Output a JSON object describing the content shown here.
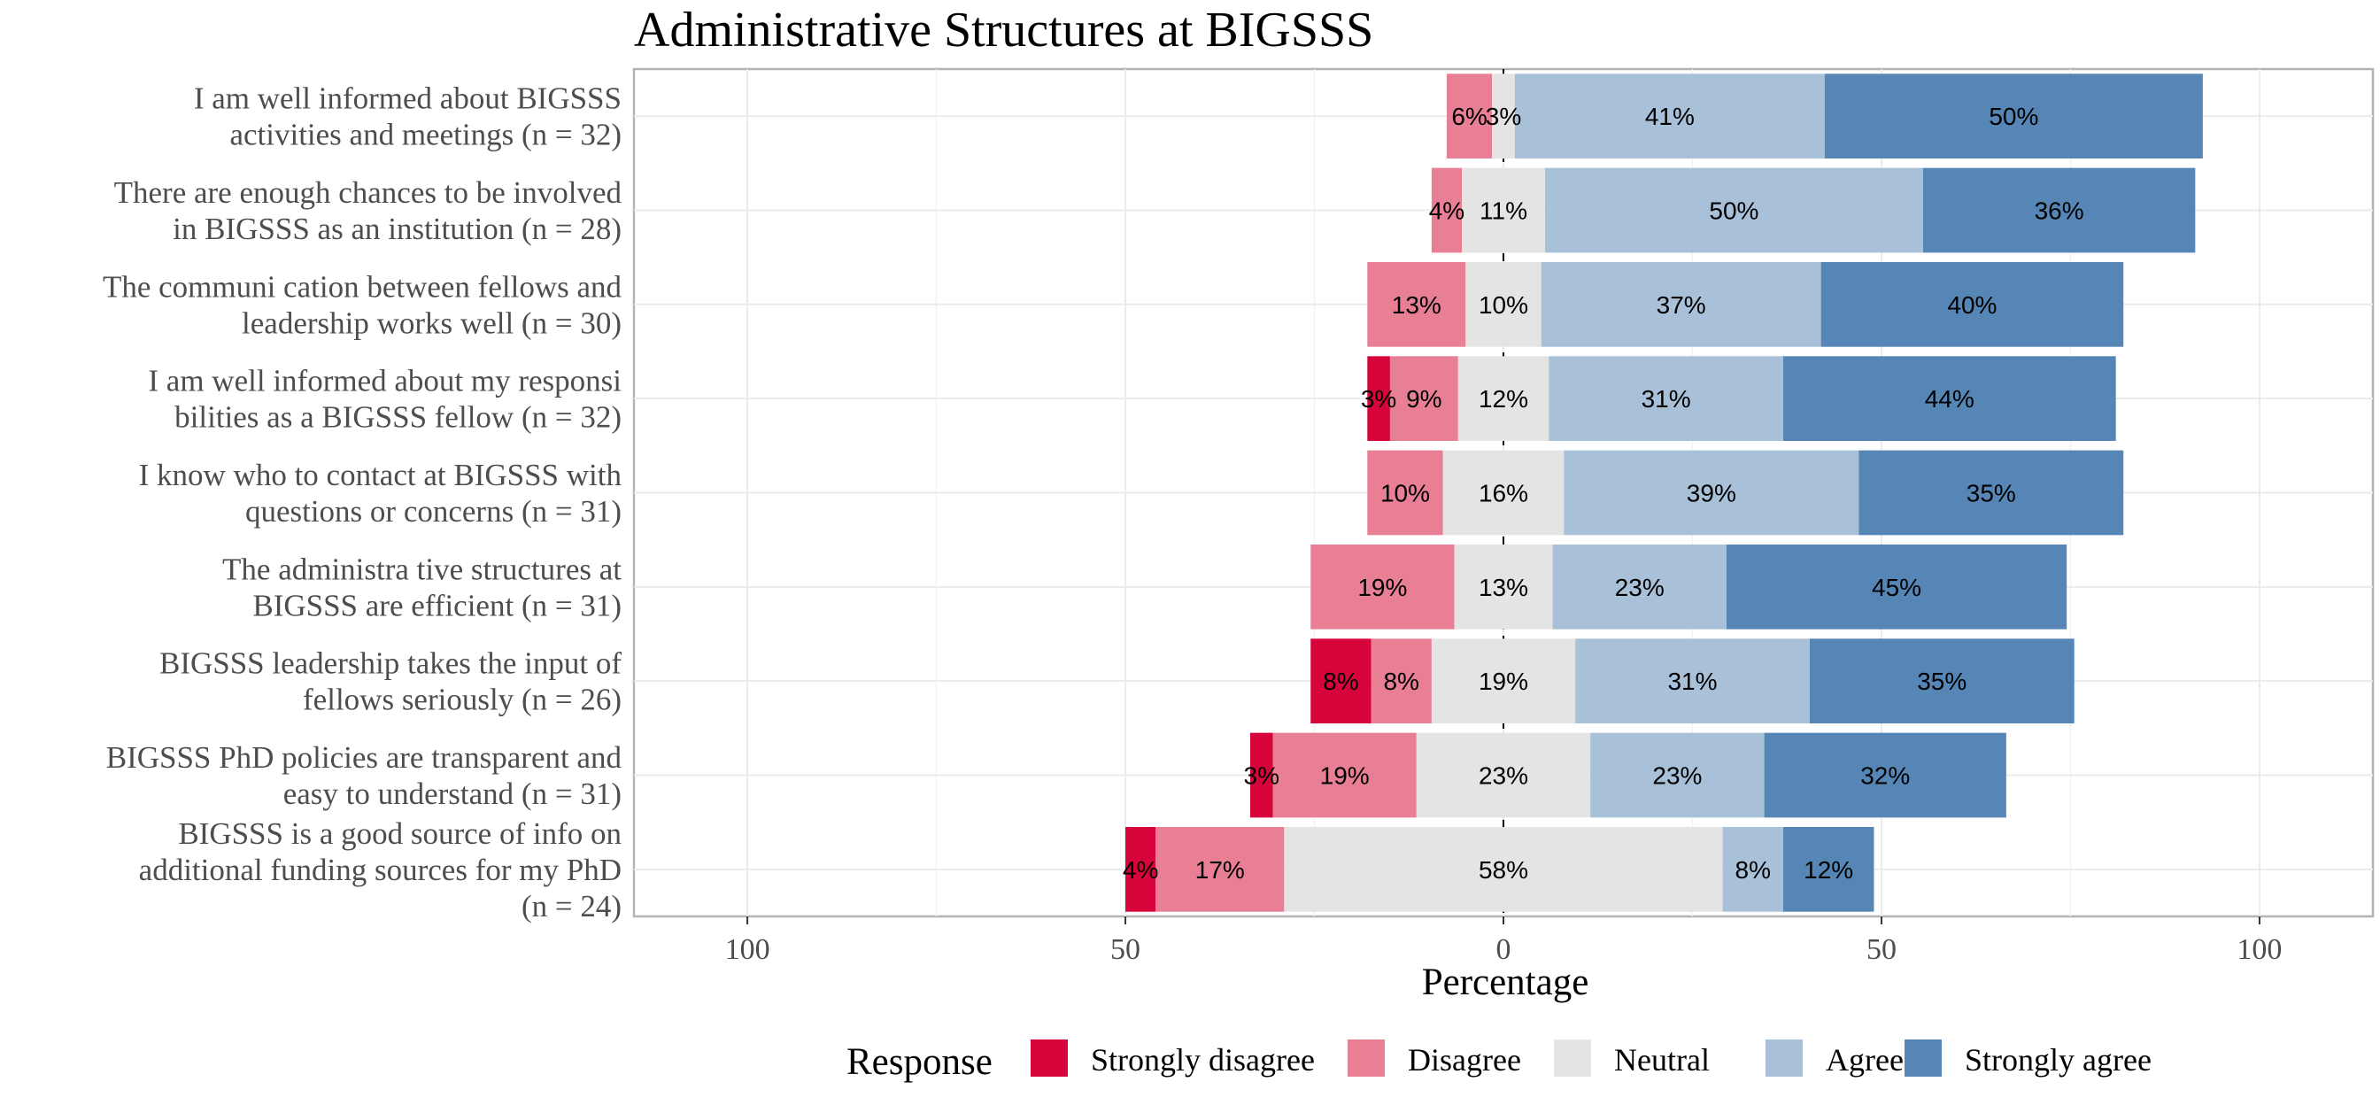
{
  "chart_data": {
    "type": "bar",
    "orientation": "horizontal-diverging-stacked",
    "title": "Administrative Structures at BIGSSS",
    "xlabel": "Percentage",
    "xlim": [
      -115,
      115
    ],
    "xticks": [
      -100,
      -50,
      0,
      50,
      100
    ],
    "xtick_labels": [
      "100",
      "50",
      "0",
      "50",
      "100"
    ],
    "legend_title": "Response",
    "legend_position": "bottom",
    "grid": true,
    "categories": [
      "Strongly disagree",
      "Disagree",
      "Neutral",
      "Agree",
      "Strongly agree"
    ],
    "colors": {
      "Strongly disagree": "#d7043b",
      "Disagree": "#e97f95",
      "Neutral": "#e4e4e4",
      "Agree": "#a9c0d9",
      "Strongly agree": "#5586b6"
    },
    "items": [
      {
        "label": [
          "I am well informed about BIGSSS",
          "activities and meetings (n = 32)"
        ],
        "values": [
          0,
          6,
          3,
          41,
          50
        ]
      },
      {
        "label": [
          "There are enough chances to be involved",
          "in BIGSSS as an institution (n = 28)"
        ],
        "values": [
          0,
          4,
          11,
          50,
          36
        ]
      },
      {
        "label": [
          "The communi cation between fellows and",
          "leadership works well (n = 30)"
        ],
        "values": [
          0,
          13,
          10,
          37,
          40
        ]
      },
      {
        "label": [
          "I am well informed about my responsi",
          "bilities as a BIGSSS fellow (n = 32)"
        ],
        "values": [
          3,
          9,
          12,
          31,
          44
        ]
      },
      {
        "label": [
          "I know who to contact at BIGSSS with",
          "questions or concerns (n = 31)"
        ],
        "values": [
          0,
          10,
          16,
          39,
          35
        ]
      },
      {
        "label": [
          "The administra tive structures at",
          "BIGSSS are efficient (n = 31)"
        ],
        "values": [
          0,
          19,
          13,
          23,
          45
        ]
      },
      {
        "label": [
          "BIGSSS leadership takes the input of",
          "fellows seriously (n = 26)"
        ],
        "values": [
          8,
          8,
          19,
          31,
          35
        ]
      },
      {
        "label": [
          "BIGSSS PhD policies are transparent and",
          "easy to understand (n = 31)"
        ],
        "values": [
          3,
          19,
          23,
          23,
          32
        ]
      },
      {
        "label": [
          "BIGSSS is a good source of info on",
          "additional funding sources for my PhD",
          "(n = 24)"
        ],
        "values": [
          4,
          17,
          58,
          8,
          12
        ]
      }
    ]
  }
}
